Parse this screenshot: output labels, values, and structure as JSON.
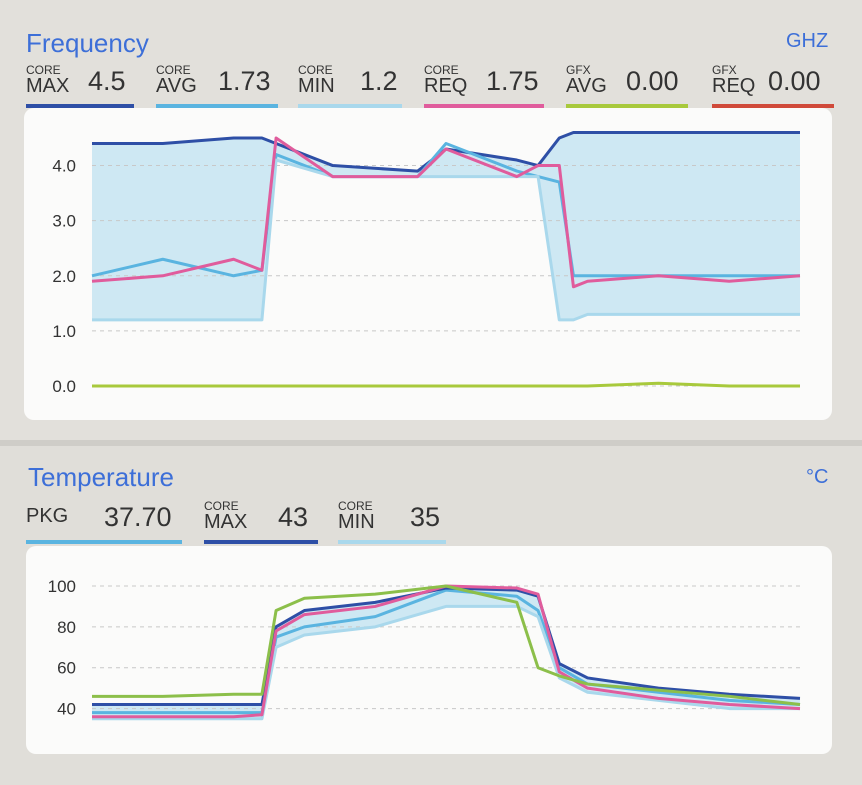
{
  "frequency": {
    "title": "Frequency",
    "unit": "GHZ",
    "metrics": [
      {
        "small": "CORE",
        "big": "MAX",
        "value": "4.5",
        "color": "#2e4fa6"
      },
      {
        "small": "CORE",
        "big": "AVG",
        "value": "1.73",
        "color": "#5ab4e0"
      },
      {
        "small": "CORE",
        "big": "MIN",
        "value": "1.2",
        "color": "#a9d8ec"
      },
      {
        "small": "CORE",
        "big": "REQ",
        "value": "1.75",
        "color": "#e05c9c"
      },
      {
        "small": "GFX",
        "big": "AVG",
        "value": "0.00",
        "color": "#a8c93c"
      },
      {
        "small": "GFX",
        "big": "REQ",
        "value": "0.00",
        "color": "#d04a3a"
      }
    ],
    "y_ticks": [
      "4.0",
      "3.0",
      "2.0",
      "1.0",
      "0.0"
    ]
  },
  "temperature": {
    "title": "Temperature",
    "unit": "°C",
    "metrics": [
      {
        "small": "",
        "big": "PKG",
        "value": "37.70",
        "color": "#5ab4e0"
      },
      {
        "small": "CORE",
        "big": "MAX",
        "value": "43",
        "color": "#2e4fa6"
      },
      {
        "small": "CORE",
        "big": "MIN",
        "value": "35",
        "color": "#a9d8ec"
      }
    ],
    "y_ticks": [
      "100",
      "80",
      "60",
      "40"
    ]
  },
  "chart_data": [
    {
      "type": "line",
      "title": "Frequency",
      "ylabel": "GHZ",
      "ylim": [
        0,
        4.5
      ],
      "x": [
        0,
        0.1,
        0.2,
        0.24,
        0.26,
        0.34,
        0.46,
        0.5,
        0.6,
        0.63,
        0.66,
        0.68,
        0.7,
        0.8,
        0.9,
        1.0
      ],
      "series": [
        {
          "name": "CORE MAX",
          "color": "#2e4fa6",
          "values": [
            4.4,
            4.4,
            4.5,
            4.5,
            4.4,
            4.0,
            3.9,
            4.3,
            4.1,
            4.0,
            4.5,
            4.6,
            4.6,
            4.6,
            4.6,
            4.6
          ]
        },
        {
          "name": "CORE AVG",
          "color": "#5ab4e0",
          "values": [
            2.0,
            2.3,
            2.0,
            2.1,
            4.2,
            3.8,
            3.8,
            4.4,
            3.9,
            3.8,
            3.7,
            2.0,
            2.0,
            2.0,
            2.0,
            2.0
          ]
        },
        {
          "name": "CORE MIN",
          "color": "#a9d8ec",
          "values": [
            1.2,
            1.2,
            1.2,
            1.2,
            4.1,
            3.8,
            3.8,
            3.8,
            3.8,
            3.8,
            1.2,
            1.2,
            1.3,
            1.3,
            1.3,
            1.3
          ]
        },
        {
          "name": "CORE REQ",
          "color": "#e05c9c",
          "values": [
            1.9,
            2.0,
            2.3,
            2.1,
            4.5,
            3.8,
            3.8,
            4.3,
            3.8,
            4.0,
            4.0,
            1.8,
            1.9,
            2.0,
            1.9,
            2.0
          ]
        },
        {
          "name": "GFX AVG",
          "color": "#a8c93c",
          "values": [
            0.0,
            0.0,
            0.0,
            0.0,
            0.0,
            0.0,
            0.0,
            0.0,
            0.0,
            0.0,
            0.0,
            0.0,
            0.0,
            0.05,
            0.0,
            0.0
          ]
        }
      ]
    },
    {
      "type": "line",
      "title": "Temperature",
      "ylabel": "°C",
      "ylim": [
        30,
        100
      ],
      "x": [
        0,
        0.1,
        0.2,
        0.24,
        0.26,
        0.3,
        0.4,
        0.5,
        0.6,
        0.63,
        0.66,
        0.7,
        0.8,
        0.9,
        1.0
      ],
      "series": [
        {
          "name": "PKG",
          "color": "#5ab4e0",
          "values": [
            38,
            38,
            38,
            38,
            75,
            80,
            85,
            98,
            95,
            88,
            60,
            52,
            48,
            44,
            42
          ]
        },
        {
          "name": "CORE MAX",
          "color": "#2e4fa6",
          "values": [
            42,
            42,
            42,
            42,
            80,
            88,
            92,
            99,
            98,
            95,
            62,
            55,
            50,
            47,
            45
          ]
        },
        {
          "name": "CORE MIN",
          "color": "#a9d8ec",
          "values": [
            35,
            35,
            35,
            35,
            70,
            76,
            80,
            90,
            90,
            85,
            55,
            48,
            44,
            40,
            40
          ]
        },
        {
          "name": "CORE REQ",
          "color": "#e05c9c",
          "values": [
            36,
            36,
            36,
            37,
            78,
            86,
            90,
            100,
            99,
            96,
            58,
            50,
            45,
            42,
            40
          ]
        },
        {
          "name": "GFX",
          "color": "#8cbf4a",
          "values": [
            46,
            46,
            47,
            47,
            88,
            94,
            96,
            100,
            92,
            60,
            56,
            52,
            49,
            46,
            42
          ]
        }
      ]
    }
  ]
}
